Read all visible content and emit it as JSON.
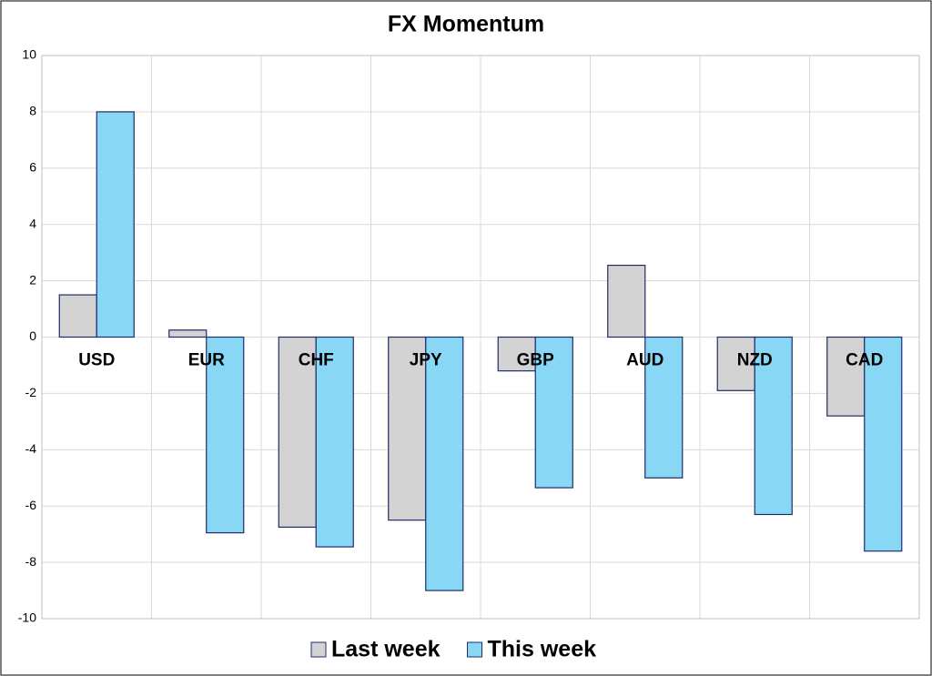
{
  "chart_data": {
    "type": "bar",
    "title": "FX Momentum",
    "categories": [
      "USD",
      "EUR",
      "CHF",
      "JPY",
      "GBP",
      "AUD",
      "NZD",
      "CAD"
    ],
    "series": [
      {
        "name": "Last week",
        "color": "#d3d3d3",
        "values": [
          1.5,
          0.25,
          -6.75,
          -6.5,
          -1.2,
          2.55,
          -1.9,
          -2.8
        ]
      },
      {
        "name": "This week",
        "color": "#87d7f5",
        "values": [
          8.0,
          -6.95,
          -7.45,
          -9.0,
          -5.35,
          -5.0,
          -6.3,
          -7.6
        ]
      }
    ],
    "ylim": [
      -10,
      10
    ],
    "yticks": [
      -10,
      -8,
      -6,
      -4,
      -2,
      0,
      2,
      4,
      6,
      8,
      10
    ],
    "grid": true,
    "legend": "bottom"
  }
}
